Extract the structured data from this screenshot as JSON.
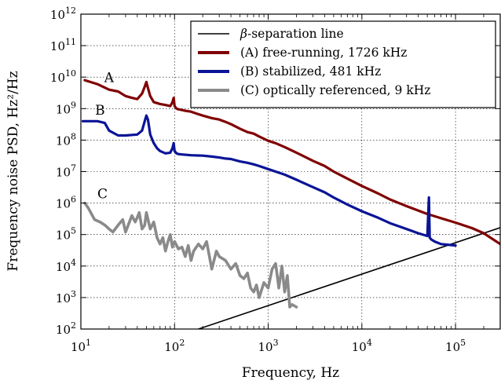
{
  "chart_data": {
    "type": "line",
    "x_scale": "log",
    "y_scale": "log",
    "xlim": [
      10,
      300000
    ],
    "ylim": [
      100,
      1000000000000
    ],
    "xlabel": "Frequency, Hz",
    "ylabel": "Frequency noise PSD, Hz²/Hz",
    "grid": true,
    "legend_position": "top-right",
    "x_ticks": [
      {
        "value": 10,
        "mantissa": "10",
        "exp": "1"
      },
      {
        "value": 100,
        "mantissa": "10",
        "exp": "2"
      },
      {
        "value": 1000,
        "mantissa": "10",
        "exp": "3"
      },
      {
        "value": 10000,
        "mantissa": "10",
        "exp": "4"
      },
      {
        "value": 100000,
        "mantissa": "10",
        "exp": "5"
      }
    ],
    "y_ticks": [
      {
        "value": 100,
        "mantissa": "10",
        "exp": "2"
      },
      {
        "value": 1000,
        "mantissa": "10",
        "exp": "3"
      },
      {
        "value": 10000,
        "mantissa": "10",
        "exp": "4"
      },
      {
        "value": 100000,
        "mantissa": "10",
        "exp": "5"
      },
      {
        "value": 1000000,
        "mantissa": "10",
        "exp": "6"
      },
      {
        "value": 10000000,
        "mantissa": "10",
        "exp": "7"
      },
      {
        "value": 100000000,
        "mantissa": "10",
        "exp": "8"
      },
      {
        "value": 1000000000,
        "mantissa": "10",
        "exp": "9"
      },
      {
        "value": 10000000000,
        "mantissa": "10",
        "exp": "10"
      },
      {
        "value": 100000000000,
        "mantissa": "10",
        "exp": "11"
      },
      {
        "value": 1000000000000,
        "mantissa": "10",
        "exp": "12"
      }
    ],
    "series": [
      {
        "name": "β-separation line",
        "color": "#000000",
        "tag": "",
        "x": [
          180,
          300000
        ],
        "y": [
          100,
          166000
        ]
      },
      {
        "name": "(A) free-running, 1726 kHz",
        "color": "#800000",
        "tag": "A",
        "x": [
          11,
          15,
          20,
          25,
          30,
          35,
          40,
          45,
          48,
          50,
          52,
          55,
          60,
          70,
          80,
          90,
          95,
          98,
          100,
          105,
          110,
          120,
          130,
          150,
          170,
          200,
          250,
          300,
          350,
          400,
          500,
          600,
          700,
          800,
          900,
          1000,
          1200,
          1500,
          2000,
          3000,
          4000,
          5000,
          7000,
          10000,
          15000,
          20000,
          30000,
          50000,
          70000,
          100000,
          150000,
          200000,
          300000
        ],
        "y": [
          8000000000,
          6000000000,
          4000000000,
          3500000000,
          2500000000,
          2200000000,
          2000000000,
          3000000000,
          5000000000,
          7000000000,
          4500000000,
          2500000000,
          1600000000,
          1400000000,
          1300000000,
          1200000000,
          1600000000,
          2200000000,
          1200000000,
          1000000000,
          950000000,
          900000000,
          850000000,
          800000000,
          700000000,
          600000000,
          500000000,
          450000000,
          380000000,
          320000000,
          230000000,
          180000000,
          160000000,
          130000000,
          110000000,
          95000000,
          80000000,
          60000000,
          40000000,
          22000000,
          15000000,
          10000000,
          6000000,
          3500000,
          2000000,
          1300000,
          800000,
          450000,
          330000,
          240000,
          160000,
          110000,
          50000
        ]
      },
      {
        "name": "(B) stabilized, 481 kHz",
        "color": "#0a1496",
        "tag": "B",
        "x": [
          10.5,
          15,
          18,
          20,
          25,
          30,
          40,
          45,
          48,
          50,
          52,
          55,
          60,
          65,
          70,
          80,
          90,
          95,
          98,
          100,
          105,
          110,
          120,
          150,
          200,
          250,
          300,
          350,
          400,
          500,
          600,
          700,
          800,
          1000,
          1200,
          1500,
          2000,
          3000,
          4000,
          5000,
          7000,
          10000,
          15000,
          20000,
          30000,
          40000,
          50000,
          52000,
          53000,
          55000,
          60000,
          70000,
          100000
        ],
        "y": [
          400000000,
          400000000,
          350000000,
          200000000,
          140000000,
          140000000,
          150000000,
          200000000,
          400000000,
          600000000,
          450000000,
          150000000,
          80000000,
          55000000,
          45000000,
          38000000,
          40000000,
          55000000,
          80000000,
          45000000,
          38000000,
          36000000,
          35000000,
          33000000,
          32000000,
          30000000,
          28000000,
          26000000,
          25000000,
          21000000,
          19000000,
          17000000,
          15000000,
          12000000,
          10000000,
          8000000,
          5500000,
          3200000,
          2200000,
          1500000,
          900000,
          550000,
          340000,
          230000,
          150000,
          110000,
          90000,
          1500000,
          80000,
          70000,
          60000,
          50000,
          45000
        ]
      },
      {
        "name": "(C) optically referenced, 9 kHz",
        "color": "#8a8a8a",
        "tag": "C",
        "x": [
          11,
          12,
          14,
          16,
          18,
          20,
          22,
          25,
          28,
          30,
          33,
          35,
          38,
          40,
          42,
          45,
          48,
          50,
          55,
          60,
          65,
          70,
          75,
          80,
          85,
          90,
          95,
          100,
          110,
          120,
          130,
          140,
          150,
          160,
          180,
          200,
          220,
          250,
          280,
          300,
          350,
          400,
          450,
          500,
          550,
          600,
          650,
          700,
          750,
          800,
          900,
          1000,
          1100,
          1200,
          1300,
          1400,
          1500,
          1600,
          1700,
          1800,
          2000
        ],
        "y": [
          1000000,
          700000,
          300000,
          250000,
          200000,
          150000,
          120000,
          200000,
          300000,
          120000,
          250000,
          400000,
          250000,
          350000,
          500000,
          150000,
          200000,
          500000,
          150000,
          250000,
          80000,
          50000,
          80000,
          30000,
          60000,
          100000,
          40000,
          60000,
          35000,
          40000,
          20000,
          45000,
          15000,
          30000,
          50000,
          35000,
          60000,
          8000,
          30000,
          20000,
          15000,
          8000,
          12000,
          5000,
          4000,
          6000,
          2000,
          1500,
          2500,
          1000,
          3000,
          2000,
          8000,
          12000,
          2000,
          10000,
          1500,
          5000,
          500,
          600,
          500
        ]
      }
    ],
    "series_tags": [
      {
        "text": "A",
        "x": 20,
        "y": 7000000000
      },
      {
        "text": "B",
        "x": 16,
        "y": 650000000
      },
      {
        "text": "C",
        "x": 17,
        "y": 1400000
      }
    ]
  }
}
